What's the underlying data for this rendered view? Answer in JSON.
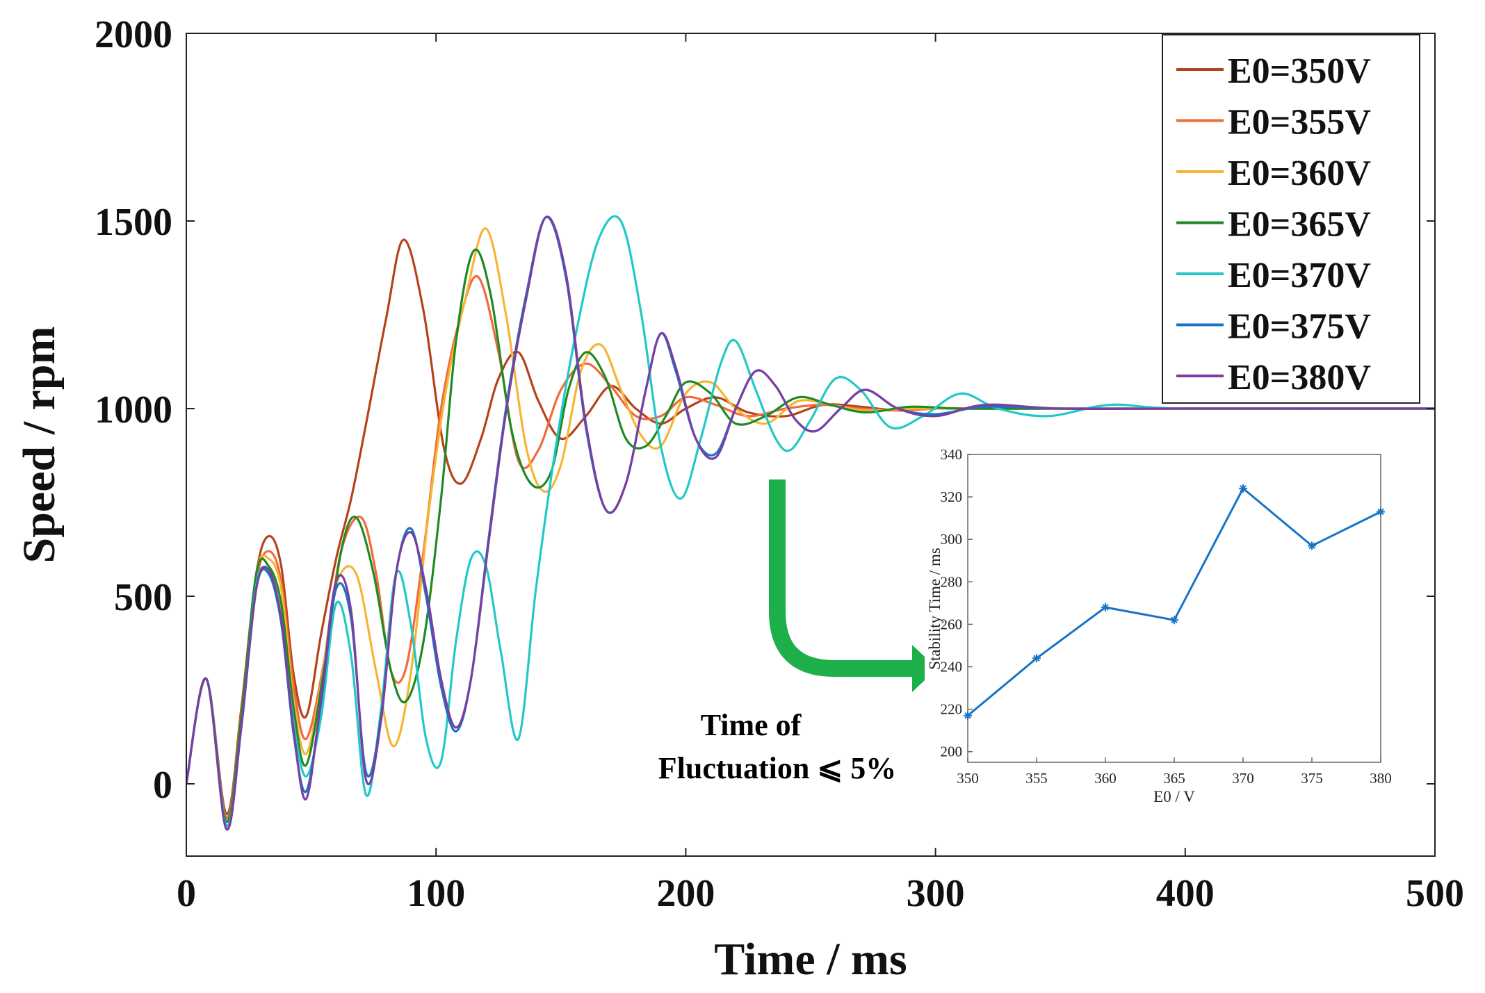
{
  "chart_data": [
    {
      "type": "line",
      "xlabel": "Time / ms",
      "ylabel": "Speed / rpm",
      "xlim": [
        0,
        500
      ],
      "ylim": [
        -200,
        2000
      ],
      "xticks": [
        0,
        100,
        200,
        300,
        400,
        500
      ],
      "xtick_labels": [
        "0",
        "100",
        "200",
        "300",
        "400",
        "500"
      ],
      "yticks": [
        0,
        500,
        1000,
        1500,
        2000
      ],
      "ytick_labels": [
        "0",
        "500",
        "1000",
        "1500",
        "2000"
      ],
      "grid": false,
      "legend_position": "top-right",
      "series": [
        {
          "name": "E0=350V",
          "color": "#b5421a",
          "x": [
            0,
            8,
            16,
            22,
            28,
            33,
            38,
            43,
            48,
            54,
            60,
            66,
            72,
            80,
            87,
            95,
            103,
            110,
            118,
            125,
            133,
            141,
            150,
            160,
            170,
            180,
            190,
            200,
            212,
            225,
            240,
            255,
            270,
            285,
            300,
            320,
            350,
            400,
            500
          ],
          "y": [
            0,
            280,
            -80,
            200,
            560,
            660,
            580,
            290,
            180,
            400,
            600,
            760,
            960,
            1240,
            1450,
            1260,
            900,
            800,
            920,
            1080,
            1150,
            1020,
            920,
            980,
            1060,
            1000,
            960,
            1000,
            1030,
            990,
            980,
            1010,
            1005,
            995,
            1000,
            1000,
            1000,
            1000,
            1000
          ]
        },
        {
          "name": "E0=355V",
          "color": "#f06a3a",
          "x": [
            0,
            8,
            16,
            22,
            28,
            33,
            38,
            43,
            48,
            55,
            62,
            70,
            76,
            82,
            88,
            95,
            102,
            110,
            117,
            125,
            133,
            141,
            150,
            160,
            170,
            180,
            190,
            200,
            212,
            225,
            240,
            255,
            270,
            285,
            300,
            320,
            350,
            400,
            500
          ],
          "y": [
            0,
            280,
            -90,
            190,
            540,
            620,
            540,
            260,
            120,
            320,
            620,
            710,
            560,
            300,
            310,
            620,
            1000,
            1250,
            1350,
            1150,
            860,
            890,
            1050,
            1120,
            1060,
            980,
            980,
            1030,
            1010,
            980,
            1000,
            1010,
            1000,
            995,
            1000,
            1000,
            1000,
            1000,
            1000
          ]
        },
        {
          "name": "E0=360V",
          "color": "#f5b533",
          "x": [
            0,
            8,
            16,
            22,
            28,
            33,
            38,
            43,
            48,
            54,
            60,
            68,
            76,
            83,
            90,
            97,
            104,
            112,
            120,
            128,
            136,
            143,
            150,
            158,
            166,
            174,
            182,
            190,
            200,
            210,
            220,
            232,
            245,
            258,
            272,
            290,
            310,
            350,
            400,
            500
          ],
          "y": [
            0,
            280,
            -100,
            180,
            560,
            600,
            520,
            220,
            80,
            270,
            530,
            560,
            300,
            100,
            300,
            720,
            1050,
            1300,
            1480,
            1250,
            900,
            780,
            850,
            1100,
            1170,
            1050,
            930,
            900,
            1040,
            1070,
            1000,
            960,
            1020,
            1010,
            995,
            1000,
            1000,
            1000,
            1000,
            1000
          ]
        },
        {
          "name": "E0=365V",
          "color": "#1f8a24",
          "x": [
            0,
            8,
            16,
            22,
            28,
            33,
            38,
            43,
            48,
            55,
            62,
            68,
            75,
            82,
            88,
            95,
            102,
            108,
            115,
            122,
            130,
            138,
            146,
            153,
            160,
            168,
            176,
            184,
            192,
            200,
            210,
            220,
            232,
            245,
            258,
            272,
            290,
            310,
            350,
            400,
            500
          ],
          "y": [
            0,
            280,
            -100,
            180,
            560,
            580,
            480,
            200,
            50,
            300,
            620,
            710,
            560,
            300,
            220,
            380,
            760,
            1180,
            1420,
            1300,
            950,
            800,
            830,
            1050,
            1150,
            1080,
            920,
            900,
            980,
            1070,
            1040,
            960,
            980,
            1030,
            1010,
            990,
            1005,
            1000,
            1000,
            1000,
            1000
          ]
        },
        {
          "name": "E0=370V",
          "color": "#22c8c8",
          "x": [
            0,
            8,
            16,
            22,
            28,
            33,
            38,
            43,
            48,
            54,
            60,
            66,
            72,
            78,
            84,
            90,
            96,
            102,
            108,
            114,
            120,
            126,
            133,
            140,
            148,
            156,
            165,
            174,
            182,
            190,
            198,
            206,
            214,
            220,
            228,
            236,
            242,
            250,
            260,
            270,
            282,
            295,
            310,
            325,
            345,
            370,
            400,
            500
          ],
          "y": [
            0,
            280,
            -110,
            150,
            530,
            560,
            430,
            160,
            20,
            180,
            480,
            340,
            -30,
            200,
            560,
            420,
            120,
            60,
            380,
            600,
            580,
            350,
            120,
            520,
            900,
            1200,
            1450,
            1500,
            1260,
            900,
            760,
            920,
            1120,
            1180,
            1050,
            920,
            890,
            970,
            1080,
            1050,
            950,
            980,
            1040,
            1000,
            980,
            1010,
            1000,
            1000
          ]
        },
        {
          "name": "E0=375V",
          "color": "#1774c4",
          "x": [
            0,
            8,
            16,
            22,
            28,
            33,
            38,
            43,
            48,
            54,
            60,
            66,
            72,
            78,
            84,
            90,
            96,
            102,
            108,
            114,
            121,
            128,
            136,
            144,
            152,
            160,
            168,
            176,
            184,
            190,
            196,
            204,
            212,
            220,
            228,
            236,
            244,
            252,
            262,
            272,
            285,
            300,
            320,
            350,
            400,
            500
          ],
          "y": [
            0,
            280,
            -120,
            150,
            520,
            560,
            430,
            130,
            -20,
            220,
            520,
            440,
            30,
            180,
            560,
            680,
            500,
            260,
            140,
            280,
            650,
            1000,
            1300,
            1510,
            1350,
            950,
            730,
            800,
            1050,
            1200,
            1100,
            920,
            880,
            1000,
            1100,
            1060,
            970,
            940,
            1000,
            1050,
            1000,
            985,
            1005,
            1000,
            1000,
            1000
          ]
        },
        {
          "name": "E0=380V",
          "color": "#7a3fa0",
          "x": [
            0,
            8,
            16,
            22,
            28,
            33,
            38,
            43,
            48,
            54,
            60,
            66,
            72,
            78,
            84,
            90,
            96,
            102,
            108,
            114,
            121,
            128,
            136,
            144,
            152,
            160,
            168,
            176,
            184,
            190,
            196,
            204,
            212,
            220,
            228,
            236,
            244,
            252,
            262,
            272,
            285,
            300,
            320,
            350,
            400,
            500
          ],
          "y": [
            0,
            280,
            -120,
            150,
            520,
            570,
            440,
            140,
            -40,
            230,
            540,
            460,
            10,
            170,
            560,
            670,
            520,
            280,
            150,
            280,
            640,
            990,
            1290,
            1510,
            1360,
            960,
            730,
            800,
            1050,
            1200,
            1110,
            920,
            870,
            1000,
            1100,
            1060,
            970,
            940,
            1000,
            1050,
            1000,
            980,
            1010,
            1000,
            1000,
            1000
          ]
        }
      ]
    },
    {
      "type": "line",
      "xlabel": "E0 / V",
      "ylabel": "Stability Time / ms",
      "xlim": [
        350,
        380
      ],
      "ylim": [
        195,
        340
      ],
      "xticks": [
        350,
        355,
        360,
        365,
        370,
        375,
        380
      ],
      "xtick_labels": [
        "350",
        "355",
        "360",
        "365",
        "370",
        "375",
        "380"
      ],
      "yticks": [
        200,
        220,
        240,
        260,
        280,
        300,
        320,
        340
      ],
      "ytick_labels": [
        "200",
        "220",
        "240",
        "260",
        "280",
        "300",
        "320",
        "340"
      ],
      "color": "#1774c4",
      "x": [
        350,
        355,
        360,
        365,
        370,
        375,
        380
      ],
      "y": [
        217,
        244,
        268,
        262,
        324,
        297,
        313
      ]
    }
  ],
  "annotation": {
    "line1": "Time of",
    "line2": "Fluctuation ⩽ 5%",
    "arrow_color": "#1db04a"
  }
}
